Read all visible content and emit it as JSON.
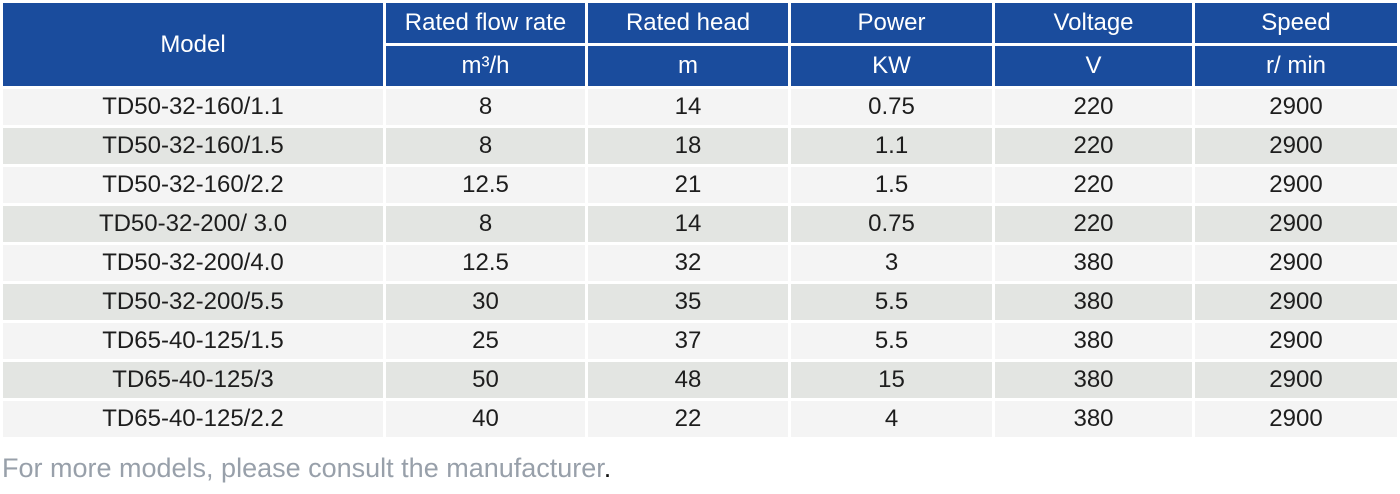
{
  "table": {
    "columns": [
      {
        "label": "Model",
        "unit": null
      },
      {
        "label": "Rated flow rate",
        "unit": "m³/h"
      },
      {
        "label": "Rated head",
        "unit": "m"
      },
      {
        "label": "Power",
        "unit": "KW"
      },
      {
        "label": "Voltage",
        "unit": "V"
      },
      {
        "label": "Speed",
        "unit": "r/ min"
      }
    ],
    "rows": [
      {
        "model": "TD50-32-160/1.1",
        "flow": "8",
        "head": "14",
        "power": "0.75",
        "voltage": "220",
        "speed": "2900"
      },
      {
        "model": "TD50-32-160/1.5",
        "flow": "8",
        "head": "18",
        "power": "1.1",
        "voltage": "220",
        "speed": "2900"
      },
      {
        "model": "TD50-32-160/2.2",
        "flow": "12.5",
        "head": "21",
        "power": "1.5",
        "voltage": "220",
        "speed": "2900"
      },
      {
        "model": "TD50-32-200/ 3.0",
        "flow": "8",
        "head": "14",
        "power": "0.75",
        "voltage": "220",
        "speed": "2900"
      },
      {
        "model": "TD50-32-200/4.0",
        "flow": "12.5",
        "head": "32",
        "power": "3",
        "voltage": "380",
        "speed": "2900"
      },
      {
        "model": "TD50-32-200/5.5",
        "flow": "30",
        "head": "35",
        "power": "5.5",
        "voltage": "380",
        "speed": "2900"
      },
      {
        "model": "TD65-40-125/1.5",
        "flow": "25",
        "head": "37",
        "power": "5.5",
        "voltage": "380",
        "speed": "2900"
      },
      {
        "model": "TD65-40-125/3",
        "flow": "50",
        "head": "48",
        "power": "15",
        "voltage": "380",
        "speed": "2900"
      },
      {
        "model": "TD65-40-125/2.2",
        "flow": "40",
        "head": "22",
        "power": "4",
        "voltage": "380",
        "speed": "2900"
      }
    ]
  },
  "footer": {
    "note": "For more models, please consult the manufacturer",
    "period": "."
  },
  "colors": {
    "header_bg": "#1a4c9d",
    "header_text": "#ffffff",
    "row_odd": "#f4f4f4",
    "row_even": "#e3e5e2",
    "data_text": "#1d1d1d",
    "footer_text": "#98a0aa",
    "footer_period": "#111111"
  },
  "chart_data": {
    "type": "table",
    "title": "",
    "columns": [
      "Model",
      "Rated flow rate (m³/h)",
      "Rated head (m)",
      "Power (KW)",
      "Voltage (V)",
      "Speed (r/min)"
    ],
    "rows": [
      [
        "TD50-32-160/1.1",
        8,
        14,
        0.75,
        220,
        2900
      ],
      [
        "TD50-32-160/1.5",
        8,
        18,
        1.1,
        220,
        2900
      ],
      [
        "TD50-32-160/2.2",
        12.5,
        21,
        1.5,
        220,
        2900
      ],
      [
        "TD50-32-200/3.0",
        8,
        14,
        0.75,
        220,
        2900
      ],
      [
        "TD50-32-200/4.0",
        12.5,
        32,
        3,
        380,
        2900
      ],
      [
        "TD50-32-200/5.5",
        30,
        35,
        5.5,
        380,
        2900
      ],
      [
        "TD65-40-125/1.5",
        25,
        37,
        5.5,
        380,
        2900
      ],
      [
        "TD65-40-125/3",
        50,
        48,
        15,
        380,
        2900
      ],
      [
        "TD65-40-125/2.2",
        40,
        22,
        4,
        380,
        2900
      ]
    ],
    "note": "For more models, please consult the manufacturer."
  }
}
